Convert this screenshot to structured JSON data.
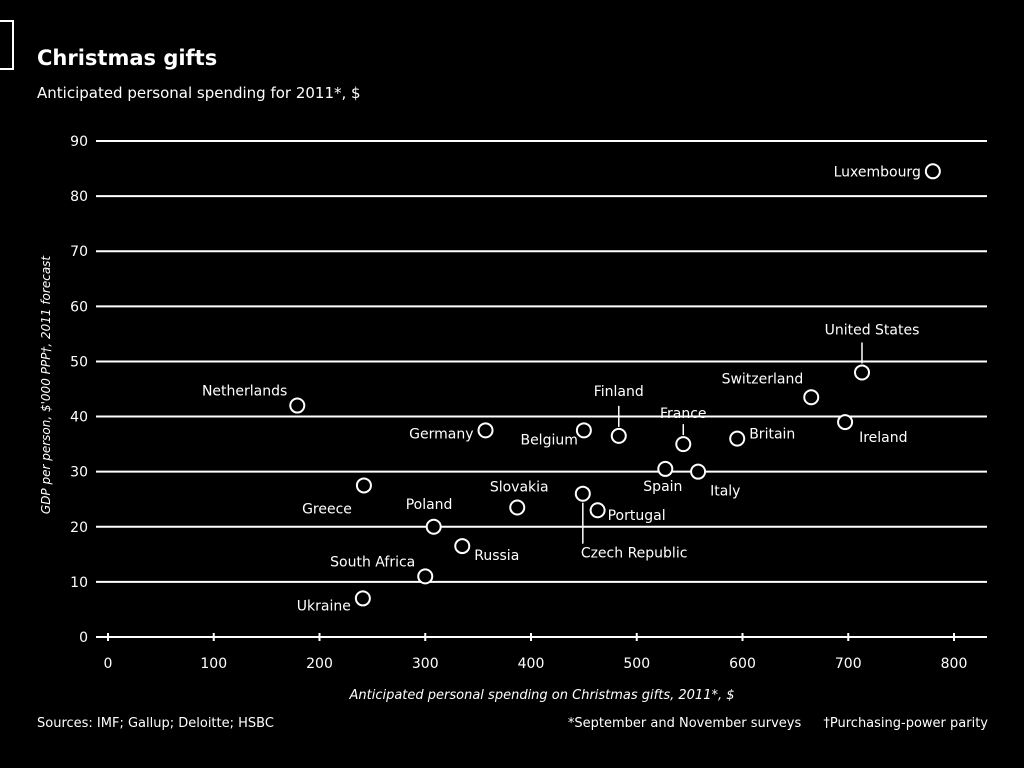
{
  "chart_data": {
    "type": "scatter",
    "title": "Christmas gifts",
    "subtitle": "Anticipated personal spending for 2011*, $",
    "xlabel": "Anticipated personal spending on Christmas gifts, 2011*, $",
    "ylabel": "GDP per person, $'000 PPP†, 2011 forecast",
    "xlim": [
      0,
      830
    ],
    "ylim": [
      0,
      90
    ],
    "xticks": [
      0,
      100,
      200,
      300,
      400,
      500,
      600,
      700,
      800
    ],
    "yticks": [
      0,
      10,
      20,
      30,
      40,
      50,
      60,
      70,
      80,
      90
    ],
    "grid": "horizontal",
    "points": [
      {
        "label": "Luxembourg",
        "x": 780,
        "y": 84.5
      },
      {
        "label": "United States",
        "x": 713,
        "y": 48
      },
      {
        "label": "Switzerland",
        "x": 665,
        "y": 43.5
      },
      {
        "label": "Ireland",
        "x": 697,
        "y": 39
      },
      {
        "label": "Netherlands",
        "x": 179,
        "y": 42
      },
      {
        "label": "Finland",
        "x": 483,
        "y": 36.5
      },
      {
        "label": "France",
        "x": 544,
        "y": 35
      },
      {
        "label": "Britain",
        "x": 595,
        "y": 36
      },
      {
        "label": "Germany",
        "x": 357,
        "y": 37.5
      },
      {
        "label": "Belgium",
        "x": 450,
        "y": 37.5
      },
      {
        "label": "Spain",
        "x": 527,
        "y": 30.5
      },
      {
        "label": "Italy",
        "x": 558,
        "y": 30
      },
      {
        "label": "Greece",
        "x": 242,
        "y": 27.5
      },
      {
        "label": "Slovakia",
        "x": 387,
        "y": 23.5
      },
      {
        "label": "Czech Republic",
        "x": 449,
        "y": 26
      },
      {
        "label": "Portugal",
        "x": 463,
        "y": 23
      },
      {
        "label": "Poland",
        "x": 308,
        "y": 20
      },
      {
        "label": "Russia",
        "x": 335,
        "y": 16.5
      },
      {
        "label": "South Africa",
        "x": 300,
        "y": 11
      },
      {
        "label": "Ukraine",
        "x": 241,
        "y": 7
      }
    ]
  },
  "footer": {
    "sources": "Sources: IMF; Gallup; Deloitte; HSBC",
    "note1": "*September and November surveys",
    "note2": "†Purchasing-power parity"
  }
}
